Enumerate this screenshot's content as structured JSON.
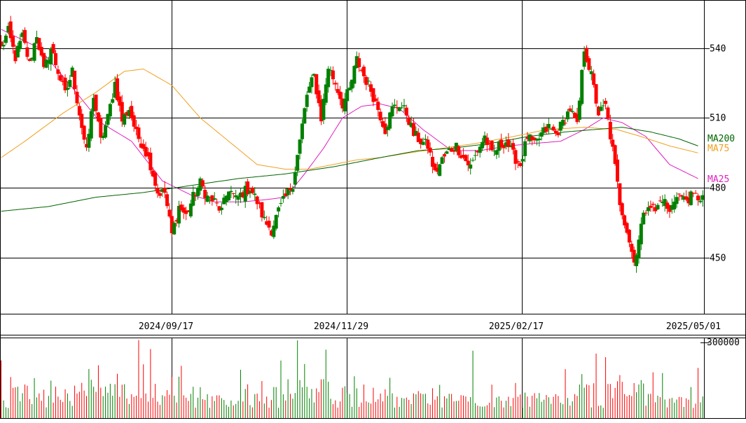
{
  "chart_data": {
    "type": "candlestick",
    "price_axis": {
      "ticks": [
        450,
        480,
        510,
        540
      ],
      "tick_labels": [
        "450",
        "480",
        "510",
        "540"
      ],
      "ylim": [
        426,
        560
      ]
    },
    "date_axis": {
      "tick_labels": [
        "2024/09/17",
        "2024/11/29",
        "2025/02/17",
        "2025/05/01"
      ]
    },
    "volume_axis": {
      "tick_labels": [
        "300000"
      ],
      "max_tick": 300000,
      "ylim": [
        0,
        320000
      ]
    },
    "legend": [
      {
        "name": "MA200",
        "color": "#006400"
      },
      {
        "name": "MA75",
        "color": "#f0a020"
      },
      {
        "name": "MA25",
        "color": "#e020c0"
      }
    ],
    "colors": {
      "up": "#008000",
      "down": "#ff0000",
      "grid": "#000000"
    },
    "grid": true,
    "ohlc_anchors": [
      [
        0,
        540
      ],
      [
        3,
        547
      ],
      [
        6,
        536
      ],
      [
        9,
        545
      ],
      [
        12,
        533
      ],
      [
        15,
        546
      ],
      [
        18,
        530
      ],
      [
        21,
        540
      ],
      [
        24,
        530
      ],
      [
        27,
        520
      ],
      [
        30,
        530
      ],
      [
        33,
        512
      ],
      [
        36,
        495
      ],
      [
        39,
        520
      ],
      [
        42,
        500
      ],
      [
        45,
        510
      ],
      [
        48,
        525
      ],
      [
        51,
        509
      ],
      [
        54,
        514
      ],
      [
        57,
        503
      ],
      [
        60,
        498
      ],
      [
        63,
        490
      ],
      [
        66,
        478
      ],
      [
        69,
        478
      ],
      [
        72,
        460
      ],
      [
        75,
        472
      ],
      [
        78,
        468
      ],
      [
        81,
        476
      ],
      [
        84,
        482
      ],
      [
        87,
        476
      ],
      [
        90,
        474
      ],
      [
        93,
        470
      ],
      [
        96,
        480
      ],
      [
        99,
        475
      ],
      [
        102,
        478
      ],
      [
        105,
        480
      ],
      [
        108,
        474
      ],
      [
        111,
        466
      ],
      [
        114,
        462
      ],
      [
        117,
        470
      ],
      [
        120,
        476
      ],
      [
        123,
        482
      ],
      [
        126,
        500
      ],
      [
        129,
        520
      ],
      [
        132,
        528
      ],
      [
        135,
        510
      ],
      [
        138,
        532
      ],
      [
        141,
        525
      ],
      [
        144,
        516
      ],
      [
        147,
        522
      ],
      [
        150,
        535
      ],
      [
        153,
        528
      ],
      [
        156,
        522
      ],
      [
        159,
        514
      ],
      [
        162,
        505
      ],
      [
        165,
        514
      ],
      [
        168,
        516
      ],
      [
        171,
        512
      ],
      [
        174,
        503
      ],
      [
        177,
        500
      ],
      [
        180,
        498
      ],
      [
        183,
        486
      ],
      [
        186,
        492
      ],
      [
        189,
        496
      ],
      [
        192,
        498
      ],
      [
        195,
        493
      ],
      [
        198,
        489
      ],
      [
        201,
        496
      ],
      [
        204,
        502
      ],
      [
        207,
        494
      ],
      [
        210,
        498
      ],
      [
        213,
        500
      ],
      [
        216,
        494
      ],
      [
        219,
        490
      ],
      [
        222,
        502
      ],
      [
        225,
        498
      ],
      [
        228,
        503
      ],
      [
        231,
        506
      ],
      [
        234,
        503
      ],
      [
        237,
        508
      ],
      [
        240,
        514
      ],
      [
        243,
        506
      ],
      [
        246,
        540
      ],
      [
        249,
        528
      ],
      [
        252,
        512
      ],
      [
        255,
        515
      ],
      [
        258,
        496
      ],
      [
        261,
        474
      ],
      [
        264,
        462
      ],
      [
        267,
        448
      ],
      [
        270,
        464
      ],
      [
        273,
        474
      ],
      [
        276,
        470
      ],
      [
        279,
        476
      ],
      [
        282,
        469
      ],
      [
        285,
        478
      ],
      [
        288,
        475
      ],
      [
        291,
        476
      ],
      [
        294,
        476
      ]
    ],
    "moving_averages": {
      "MA25": [
        [
          0,
          548
        ],
        [
          16,
          540
        ],
        [
          30,
          523
        ],
        [
          42,
          508
        ],
        [
          55,
          500
        ],
        [
          68,
          483
        ],
        [
          80,
          477
        ],
        [
          90,
          474
        ],
        [
          102,
          474
        ],
        [
          112,
          475
        ],
        [
          120,
          476
        ],
        [
          128,
          486
        ],
        [
          136,
          497
        ],
        [
          144,
          510
        ],
        [
          152,
          515
        ],
        [
          160,
          516
        ],
        [
          168,
          514
        ],
        [
          178,
          505
        ],
        [
          190,
          496
        ],
        [
          202,
          496
        ],
        [
          214,
          498
        ],
        [
          224,
          499
        ],
        [
          236,
          500
        ],
        [
          246,
          505
        ],
        [
          254,
          510
        ],
        [
          262,
          508
        ],
        [
          272,
          502
        ],
        [
          282,
          490
        ],
        [
          294,
          484
        ]
      ],
      "MA75": [
        [
          0,
          493
        ],
        [
          10,
          500
        ],
        [
          26,
          512
        ],
        [
          40,
          521
        ],
        [
          52,
          530
        ],
        [
          60,
          531
        ],
        [
          72,
          524
        ],
        [
          84,
          510
        ],
        [
          96,
          500
        ],
        [
          108,
          490
        ],
        [
          120,
          488
        ],
        [
          130,
          488
        ],
        [
          140,
          490
        ],
        [
          150,
          492
        ],
        [
          160,
          493
        ],
        [
          172,
          495
        ],
        [
          186,
          497
        ],
        [
          200,
          499
        ],
        [
          216,
          502
        ],
        [
          230,
          505
        ],
        [
          246,
          506
        ],
        [
          260,
          505
        ],
        [
          270,
          502
        ],
        [
          282,
          498
        ],
        [
          294,
          495
        ]
      ],
      "MA200": [
        [
          0,
          470
        ],
        [
          20,
          472
        ],
        [
          40,
          476
        ],
        [
          60,
          478
        ],
        [
          80,
          481
        ],
        [
          100,
          484
        ],
        [
          120,
          486
        ],
        [
          140,
          489
        ],
        [
          160,
          493
        ],
        [
          176,
          496
        ],
        [
          190,
          497
        ],
        [
          206,
          499
        ],
        [
          222,
          502
        ],
        [
          238,
          504
        ],
        [
          250,
          505
        ],
        [
          262,
          506
        ],
        [
          274,
          504
        ],
        [
          286,
          501
        ],
        [
          294,
          498
        ]
      ]
    }
  }
}
